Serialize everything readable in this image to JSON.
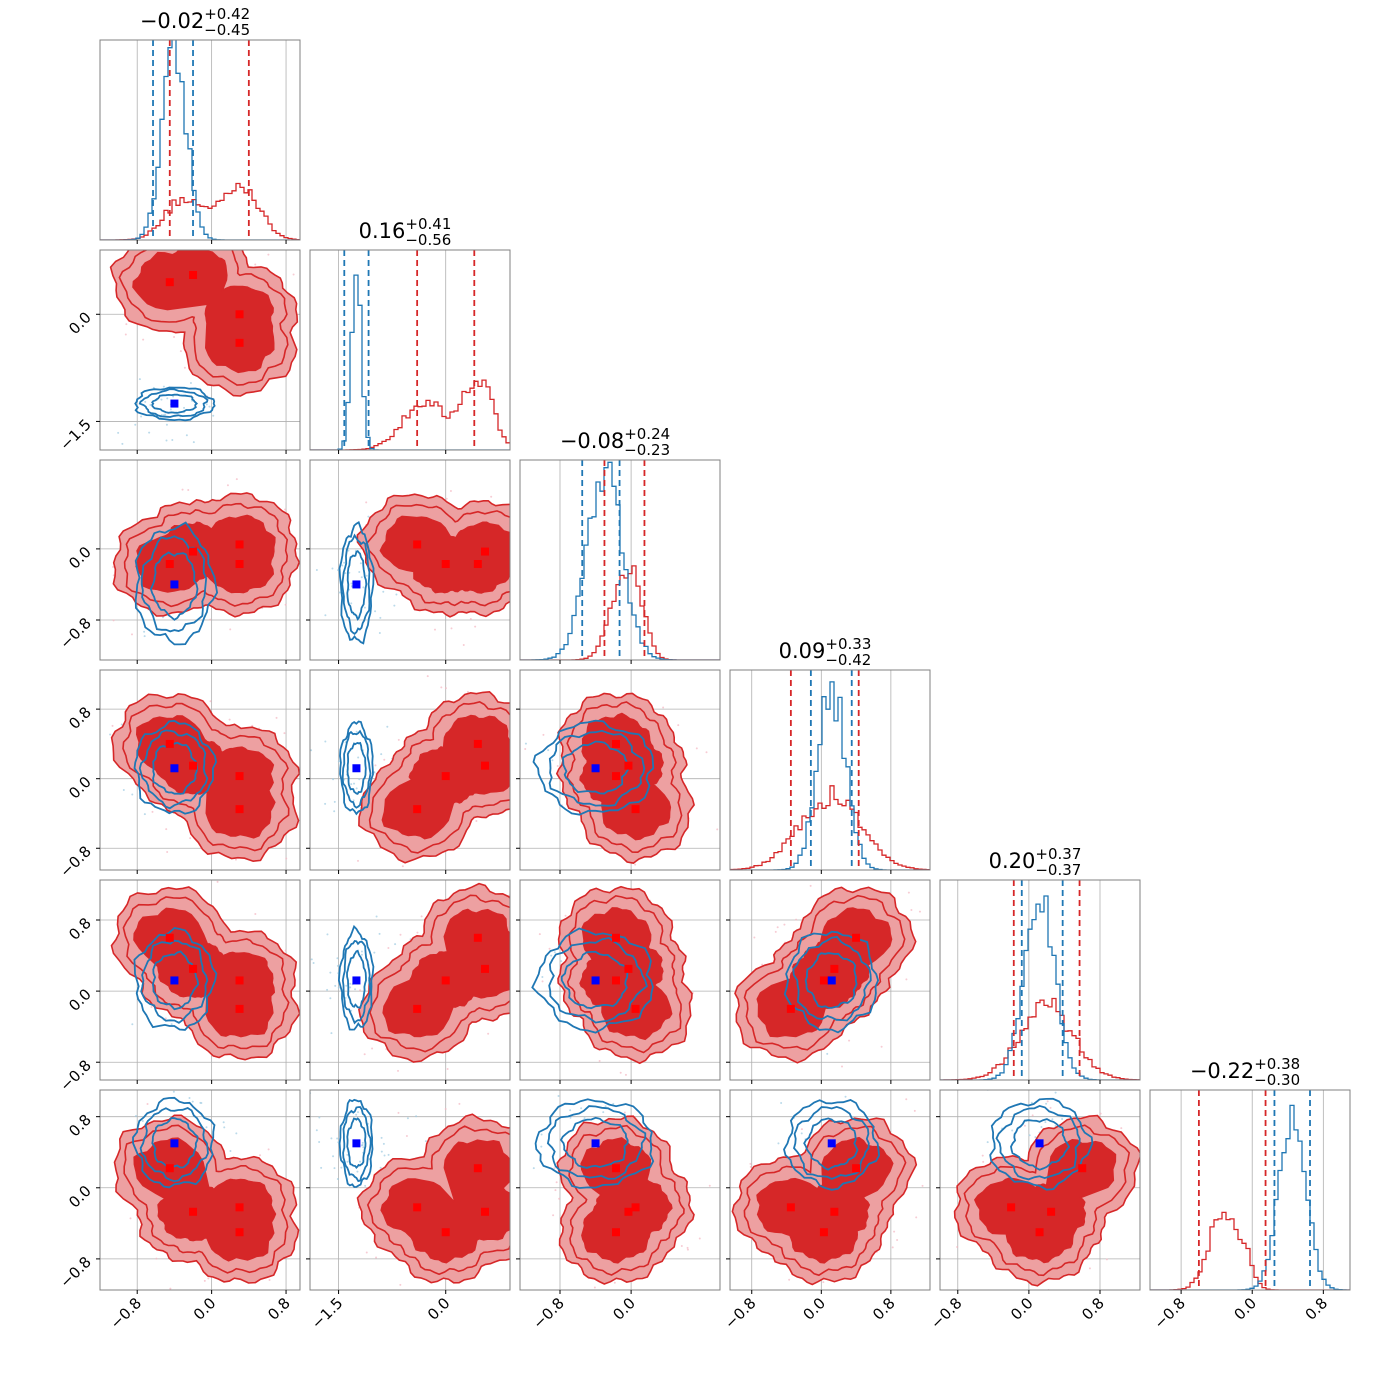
{
  "figure": {
    "type": "corner",
    "n_params": 6,
    "colors": {
      "red": "#d62728",
      "red_light": "#eda0a1",
      "blue": "#1f77b4",
      "blue_marker": "#0000ff",
      "red_marker": "#ff0000",
      "grid": "#b0b0b0",
      "frame": "#808080"
    }
  },
  "chart_data": {
    "type": "corner",
    "params": [
      {
        "range": [
          -1.2,
          0.95
        ],
        "grid": [
          -0.8,
          0.0,
          0.8
        ],
        "ticks": [
          "−0.8",
          "0.0",
          "0.8"
        ],
        "title": {
          "main": "−0.02",
          "plus": "+0.42",
          "minus": "−0.45"
        },
        "blue": {
          "mean": -0.4,
          "sd": 0.13,
          "lines": [
            -0.63,
            -0.2
          ]
        },
        "red": {
          "peaks": [
            [
              -0.3,
              0.2,
              0.5
            ],
            [
              0.3,
              0.2,
              0.7
            ]
          ],
          "lines": [
            -0.45,
            0.4
          ]
        },
        "blue_marker": -0.4,
        "red_markers": [
          -0.45,
          -0.2,
          0.3,
          0.3
        ]
      },
      {
        "range": [
          -1.9,
          0.9
        ],
        "grid": [
          -1.5,
          0.0
        ],
        "ticks": [
          "−1.5",
          "0.0"
        ],
        "title": {
          "main": "0.16",
          "plus": "+0.41",
          "minus": "−0.56"
        },
        "blue": {
          "mean": -1.25,
          "sd": 0.07,
          "lines": [
            -1.42,
            -1.08
          ]
        },
        "red": {
          "peaks": [
            [
              -0.3,
              0.3,
              0.6
            ],
            [
              0.45,
              0.2,
              0.9
            ]
          ],
          "lines": [
            -0.4,
            0.4
          ]
        },
        "blue_marker": -1.25,
        "red_markers": [
          0.45,
          0.55,
          0.0,
          -0.4
        ]
      },
      {
        "range": [
          -1.25,
          1.0
        ],
        "grid": [
          -0.8,
          0.0
        ],
        "ticks": [
          "−0.8",
          "0.0"
        ],
        "title": {
          "main": "−0.08",
          "plus": "+0.24",
          "minus": "−0.23"
        },
        "blue": {
          "mean": -0.3,
          "sd": 0.2,
          "lines": [
            -0.55,
            -0.13
          ]
        },
        "red": {
          "peaks": [
            [
              -0.1,
              0.15,
              0.8
            ],
            [
              0.05,
              0.12,
              0.5
            ]
          ],
          "lines": [
            -0.3,
            0.15
          ]
        },
        "blue_marker": -0.4,
        "red_markers": [
          -0.17,
          -0.03,
          -0.17,
          0.05
        ]
      },
      {
        "range": [
          -1.05,
          1.25
        ],
        "grid": [
          -0.8,
          0.0,
          0.8
        ],
        "ticks": [
          "−0.8",
          "0.0",
          "0.8"
        ],
        "title": {
          "main": "0.09",
          "plus": "+0.33",
          "minus": "−0.42"
        },
        "blue": {
          "mean": 0.12,
          "sd": 0.16,
          "lines": [
            -0.12,
            0.35
          ]
        },
        "red": {
          "peaks": [
            [
              0.1,
              0.35,
              0.9
            ]
          ],
          "lines": [
            -0.35,
            0.43
          ]
        },
        "blue_marker": 0.12,
        "red_markers": [
          0.4,
          0.15,
          0.03,
          -0.35
        ]
      },
      {
        "range": [
          -1.0,
          1.25
        ],
        "grid": [
          -0.8,
          0.0,
          0.8
        ],
        "ticks": [
          "−0.8",
          "0.0",
          "0.8"
        ],
        "title": {
          "main": "0.20",
          "plus": "+0.37",
          "minus": "−0.37"
        },
        "blue": {
          "mean": 0.12,
          "sd": 0.17,
          "lines": [
            -0.08,
            0.38
          ]
        },
        "red": {
          "peaks": [
            [
              0.2,
              0.3,
              0.9
            ]
          ],
          "lines": [
            -0.17,
            0.57
          ]
        },
        "blue_marker": 0.12,
        "red_markers": [
          0.6,
          0.25,
          0.12,
          -0.2
        ]
      },
      {
        "range": [
          -1.15,
          1.1
        ],
        "grid": [
          -0.8,
          0.0,
          0.8
        ],
        "ticks": [
          "−0.8",
          "0.0",
          "0.8"
        ],
        "title": {
          "main": "−0.22",
          "plus": "+0.38",
          "minus": "−0.30"
        },
        "blue": {
          "mean": 0.45,
          "sd": 0.15,
          "lines": [
            0.25,
            0.65
          ]
        },
        "red": {
          "peaks": [
            [
              -0.35,
              0.15,
              0.9
            ],
            [
              -0.1,
              0.1,
              0.4
            ]
          ],
          "lines": [
            -0.6,
            0.15
          ]
        },
        "blue_marker": 0.5,
        "red_markers": [
          0.22,
          -0.27,
          -0.5,
          -0.22
        ]
      }
    ]
  }
}
